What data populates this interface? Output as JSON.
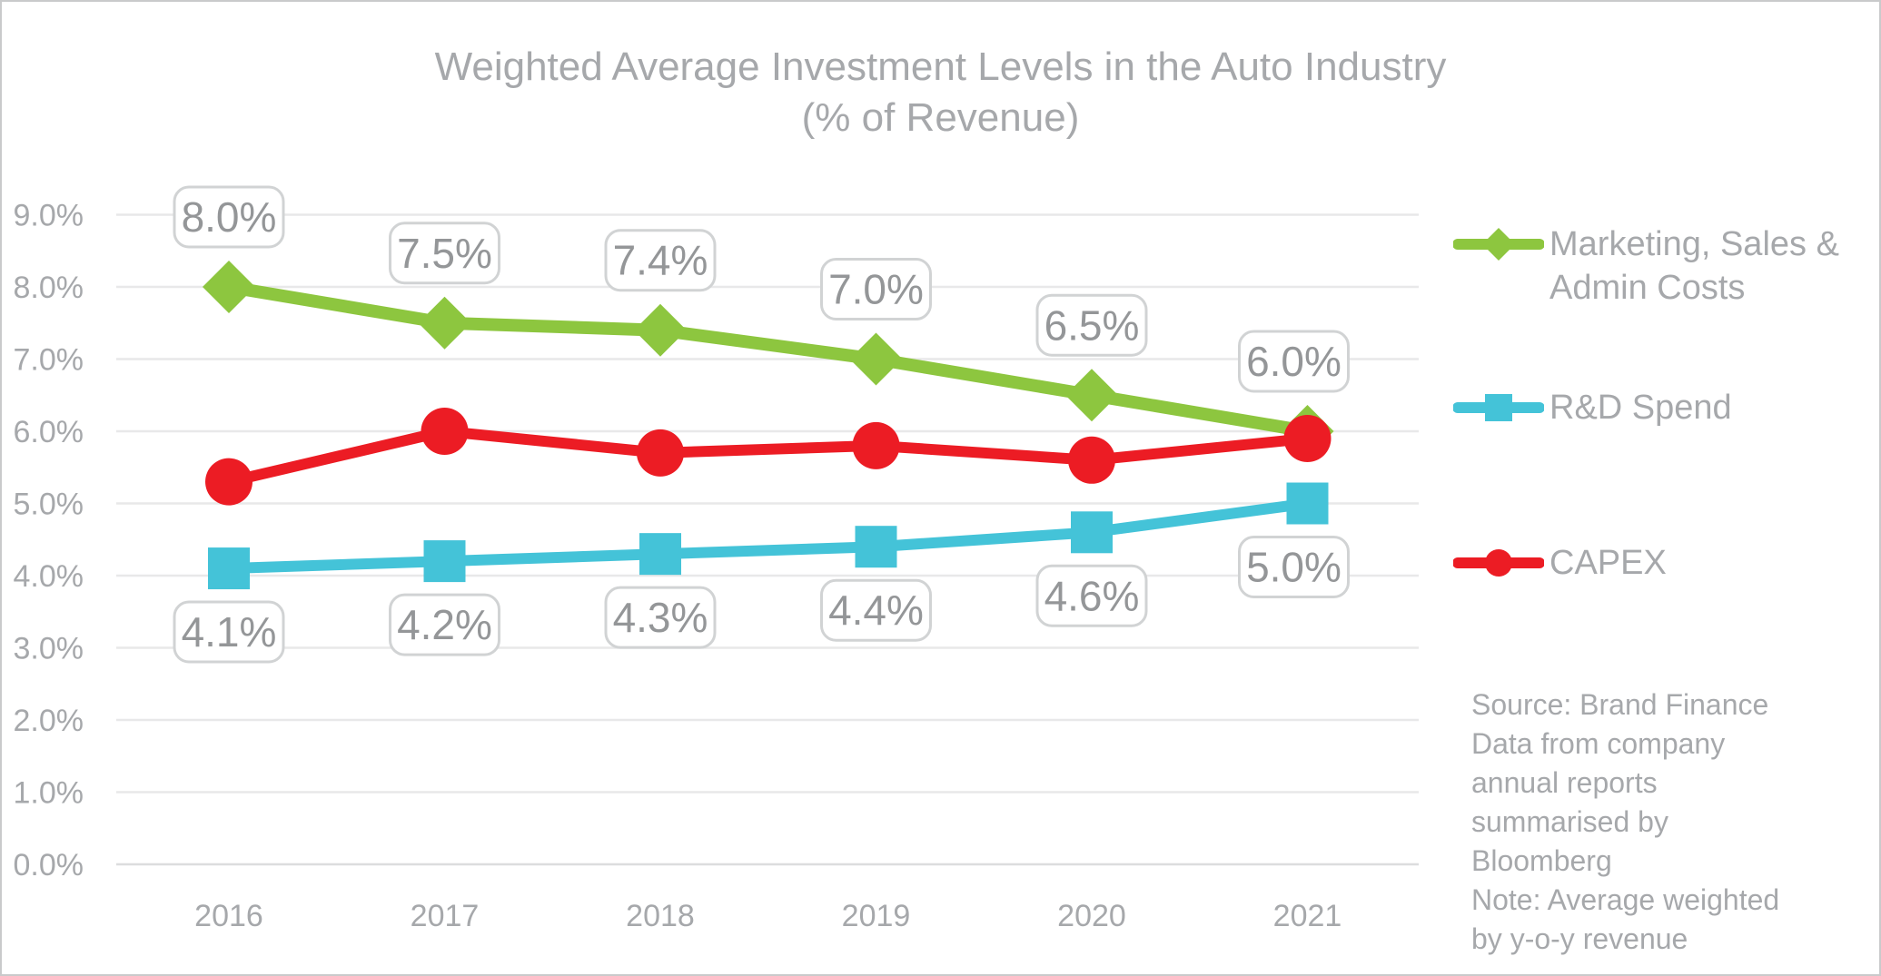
{
  "title": {
    "line1": "Weighted Average Investment Levels in the Auto Industry",
    "line2": "(% of Revenue)"
  },
  "legend": {
    "items": [
      {
        "line1": "Marketing, Sales &",
        "line2": "Admin Costs"
      },
      {
        "line1": "R&D Spend",
        "line2": ""
      },
      {
        "line1": "CAPEX",
        "line2": ""
      }
    ]
  },
  "source": {
    "lines": [
      "Source: Brand Finance",
      "Data from company",
      "annual reports",
      "summarised by",
      "Bloomberg",
      "Note: Average weighted",
      "by y-o-y revenue"
    ]
  },
  "chart_data": {
    "type": "line",
    "title": "Weighted Average Investment Levels in the Auto Industry (% of Revenue)",
    "x": [
      "2016",
      "2017",
      "2018",
      "2019",
      "2020",
      "2021"
    ],
    "y_ticks": [
      "0.0%",
      "1.0%",
      "2.0%",
      "3.0%",
      "4.0%",
      "5.0%",
      "6.0%",
      "7.0%",
      "8.0%",
      "9.0%"
    ],
    "ylim": [
      0,
      9
    ],
    "grid": true,
    "legend_position": "right",
    "series": [
      {
        "name": "Marketing, Sales & Admin Costs",
        "color": "#8DC63F",
        "marker": "diamond",
        "values": [
          8.0,
          7.5,
          7.4,
          7.0,
          6.5,
          6.0
        ],
        "labels": [
          "8.0%",
          "7.5%",
          "7.4%",
          "7.0%",
          "6.5%",
          "6.0%"
        ],
        "label_position": "above"
      },
      {
        "name": "R&D Spend",
        "color": "#44C3D8",
        "marker": "square",
        "values": [
          4.1,
          4.2,
          4.3,
          4.4,
          4.6,
          5.0
        ],
        "labels": [
          "4.1%",
          "4.2%",
          "4.3%",
          "4.4%",
          "4.6%",
          "5.0%"
        ],
        "label_position": "below"
      },
      {
        "name": "CAPEX",
        "color": "#EC1C24",
        "marker": "circle",
        "values": [
          5.3,
          6.0,
          5.7,
          5.8,
          5.6,
          5.9
        ],
        "labels": null,
        "label_position": "none"
      }
    ],
    "colors": {
      "text_gray": "#A6A8AB",
      "data_label_text": "#949698",
      "callout_border": "#D1D3D4",
      "callout_fill": "#FFFFFF",
      "gridline": "#E8E8E9",
      "baseline": "#DCDDDE"
    }
  }
}
